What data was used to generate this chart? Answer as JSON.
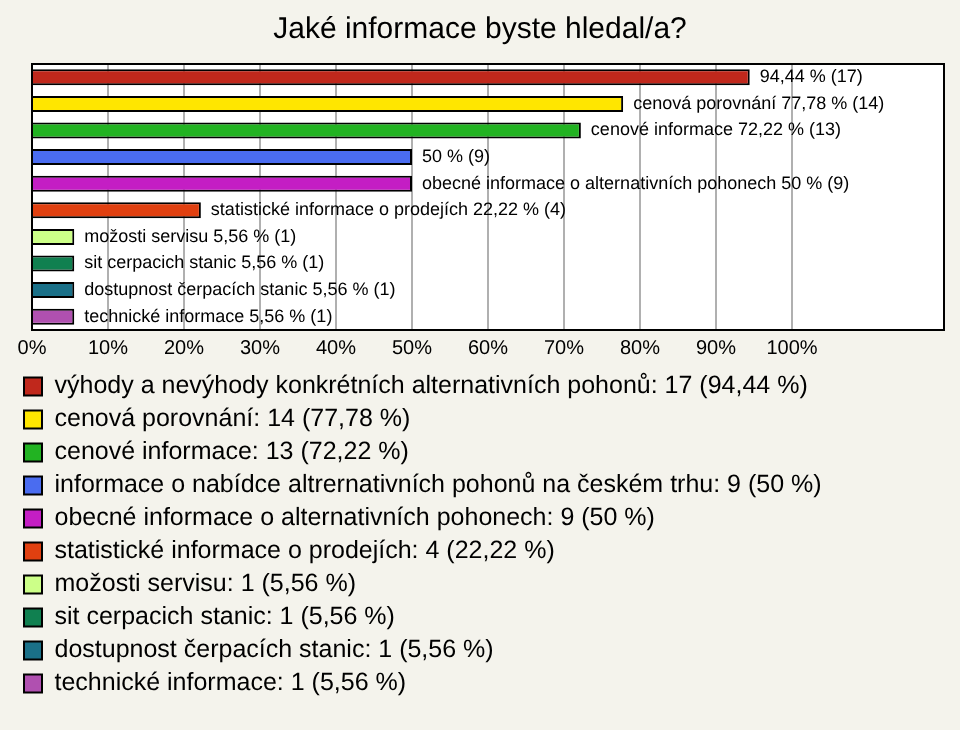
{
  "chart_data": {
    "type": "bar",
    "orientation": "horizontal",
    "title": "Jaké informace byste hledal/a?",
    "categories": [
      null,
      null,
      null,
      null,
      null,
      null,
      null,
      null,
      null,
      null
    ],
    "series": [
      {
        "name": "výhody a nevýhody konkrétních alternativních pohonů: 17 (94,44 %)",
        "color": "#c0281c",
        "values": [
          94.44,
          null,
          null,
          null,
          null,
          null,
          null,
          null,
          null,
          null
        ],
        "value_labels": [
          "94,44 % (17)",
          null,
          null,
          null,
          null,
          null,
          null,
          null,
          null,
          null
        ]
      },
      {
        "name": "cenová porovnání: 14 (77,78 %)",
        "color": "#ffe600",
        "values": [
          null,
          77.78,
          null,
          null,
          null,
          null,
          null,
          null,
          null,
          null
        ],
        "value_labels": [
          null,
          "cenová porovnání 77,78 % (14)",
          null,
          null,
          null,
          null,
          null,
          null,
          null,
          null
        ]
      },
      {
        "name": "cenové informace: 13 (72,22 %)",
        "color": "#22b322",
        "values": [
          null,
          null,
          72.22,
          null,
          null,
          null,
          null,
          null,
          null,
          null
        ],
        "value_labels": [
          null,
          null,
          "cenové informace 72,22 % (13)",
          null,
          null,
          null,
          null,
          null,
          null,
          null
        ]
      },
      {
        "name": "informace o nabídce altrernativních pohonů na českém trhu: 9 (50 %)",
        "color": "#4a6cf0",
        "values": [
          null,
          null,
          null,
          50,
          null,
          null,
          null,
          null,
          null,
          null
        ],
        "value_labels": [
          null,
          null,
          null,
          "50 % (9)",
          null,
          null,
          null,
          null,
          null,
          null
        ]
      },
      {
        "name": "obecné informace o alternativních pohonech: 9 (50 %)",
        "color": "#c41ec4",
        "values": [
          null,
          null,
          null,
          null,
          50,
          null,
          null,
          null,
          null,
          null
        ],
        "value_labels": [
          null,
          null,
          null,
          null,
          "obecné informace o alternativních pohonech 50 % (9)",
          null,
          null,
          null,
          null,
          null
        ]
      },
      {
        "name": "statistické informace o prodejích: 4 (22,22 %)",
        "color": "#e04010",
        "values": [
          null,
          null,
          null,
          null,
          null,
          22.22,
          null,
          null,
          null,
          null
        ],
        "value_labels": [
          null,
          null,
          null,
          null,
          null,
          "statistické informace o prodejích 22,22 % (4)",
          null,
          null,
          null,
          null
        ]
      },
      {
        "name": "možosti servisu: 1 (5,56 %)",
        "color": "#ccff88",
        "values": [
          null,
          null,
          null,
          null,
          null,
          null,
          5.56,
          null,
          null,
          null
        ],
        "value_labels": [
          null,
          null,
          null,
          null,
          null,
          null,
          "možosti servisu 5,56 % (1)",
          null,
          null,
          null
        ]
      },
      {
        "name": "sit cerpacich stanic: 1 (5,56 %)",
        "color": "#108050",
        "values": [
          null,
          null,
          null,
          null,
          null,
          null,
          null,
          5.56,
          null,
          null
        ],
        "value_labels": [
          null,
          null,
          null,
          null,
          null,
          null,
          null,
          "sit cerpacich stanic 5,56 % (1)",
          null,
          null
        ]
      },
      {
        "name": "dostupnost čerpacích stanic: 1 (5,56 %)",
        "color": "#1a7088",
        "values": [
          null,
          null,
          null,
          null,
          null,
          null,
          null,
          null,
          5.56,
          null
        ],
        "value_labels": [
          null,
          null,
          null,
          null,
          null,
          null,
          null,
          null,
          "dostupnost čerpacích stanic 5,56 % (1)",
          null
        ]
      },
      {
        "name": "technické informace: 1 (5,56 %)",
        "color": "#b050b0",
        "values": [
          null,
          null,
          null,
          null,
          null,
          null,
          null,
          null,
          null,
          5.56
        ],
        "value_labels": [
          null,
          null,
          null,
          null,
          null,
          null,
          null,
          null,
          null,
          "technické informace 5,56 % (1)"
        ]
      }
    ],
    "xlim": [
      0,
      120
    ],
    "xticks": [
      {
        "value": 0,
        "label": "0%"
      },
      {
        "value": 10,
        "label": "10%"
      },
      {
        "value": 20,
        "label": "20%"
      },
      {
        "value": 30,
        "label": "30%"
      },
      {
        "value": 40,
        "label": "40%"
      },
      {
        "value": 50,
        "label": "50%"
      },
      {
        "value": 60,
        "label": "60%"
      },
      {
        "value": 70,
        "label": "70%"
      },
      {
        "value": 80,
        "label": "80%"
      },
      {
        "value": 90,
        "label": "90%"
      },
      {
        "value": 100,
        "label": "100%"
      }
    ],
    "grid": "x",
    "tick_labels": "x",
    "legend": "bottom"
  }
}
